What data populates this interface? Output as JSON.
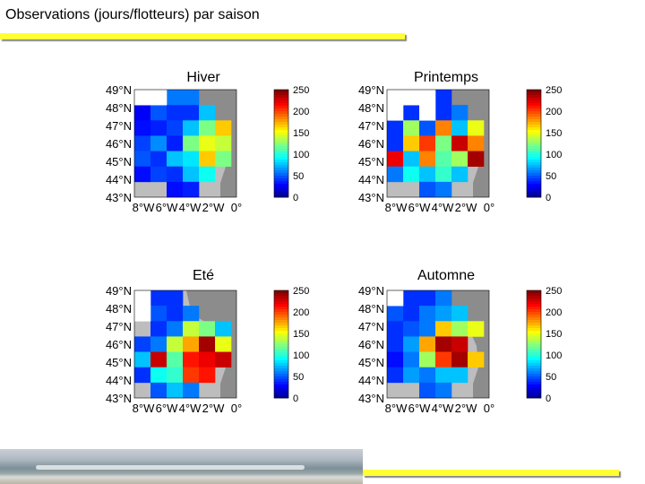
{
  "page": {
    "title": "Observations (jours/flotteurs) par saison",
    "accent_color": "#ffff33"
  },
  "chart_data": [
    {
      "type": "heatmap",
      "title": "Hiver",
      "lon_labels": [
        "8°W",
        "6°W",
        "4°W",
        "2°W",
        "0°"
      ],
      "lat_labels": [
        "49°N",
        "48°N",
        "47°N",
        "46°N",
        "45°N",
        "44°N",
        "43°N"
      ],
      "colorbar_ticks": [
        "250",
        "200",
        "150",
        "100",
        "50",
        "0"
      ],
      "vmin": 0,
      "vmax": 250,
      "grid_rows": 7,
      "grid_cols": 6,
      "values": [
        [
          null,
          null,
          40,
          40,
          null,
          null
        ],
        [
          5,
          30,
          20,
          20,
          60,
          null
        ],
        [
          10,
          15,
          25,
          60,
          110,
          160
        ],
        [
          25,
          45,
          15,
          110,
          140,
          130
        ],
        [
          30,
          20,
          60,
          70,
          160,
          110
        ],
        [
          10,
          25,
          20,
          60,
          80,
          null
        ],
        [
          null,
          null,
          10,
          15,
          null,
          null
        ]
      ]
    },
    {
      "type": "heatmap",
      "title": "Printemps",
      "lon_labels": [
        "8°W",
        "6°W",
        "4°W",
        "2°W",
        "0°"
      ],
      "lat_labels": [
        "49°N",
        "48°N",
        "47°N",
        "46°N",
        "45°N",
        "44°N",
        "43°N"
      ],
      "colorbar_ticks": [
        "250",
        "200",
        "150",
        "100",
        "50",
        "0"
      ],
      "vmin": 0,
      "vmax": 250,
      "grid_rows": 7,
      "grid_cols": 6,
      "values": [
        [
          null,
          null,
          null,
          20,
          null,
          null
        ],
        [
          null,
          20,
          null,
          20,
          40,
          null
        ],
        [
          20,
          120,
          30,
          180,
          60,
          140
        ],
        [
          20,
          160,
          200,
          110,
          230,
          180
        ],
        [
          220,
          60,
          180,
          100,
          120,
          240
        ],
        [
          40,
          80,
          60,
          90,
          60,
          null
        ],
        [
          null,
          null,
          30,
          40,
          null,
          null
        ]
      ]
    },
    {
      "type": "heatmap",
      "title": "Eté",
      "lon_labels": [
        "8°W",
        "6°W",
        "4°W",
        "2°W",
        "0°"
      ],
      "lat_labels": [
        "49°N",
        "48°N",
        "47°N",
        "46°N",
        "45°N",
        "44°N",
        "43°N"
      ],
      "colorbar_ticks": [
        "250",
        "200",
        "150",
        "100",
        "50",
        "0"
      ],
      "vmin": 0,
      "vmax": 250,
      "grid_rows": 7,
      "grid_cols": 6,
      "values": [
        [
          null,
          20,
          20,
          null,
          null,
          null
        ],
        [
          null,
          30,
          20,
          40,
          null,
          null
        ],
        [
          null,
          20,
          40,
          130,
          110,
          60
        ],
        [
          25,
          40,
          130,
          170,
          240,
          140
        ],
        [
          60,
          230,
          100,
          210,
          220,
          230
        ],
        [
          20,
          80,
          90,
          200,
          210,
          null
        ],
        [
          null,
          30,
          60,
          40,
          null,
          null
        ]
      ]
    },
    {
      "type": "heatmap",
      "title": "Automne",
      "lon_labels": [
        "8°W",
        "6°W",
        "4°W",
        "2°W",
        "0°"
      ],
      "lat_labels": [
        "49°N",
        "48°N",
        "47°N",
        "46°N",
        "45°N",
        "44°N",
        "43°N"
      ],
      "colorbar_ticks": [
        "250",
        "200",
        "150",
        "100",
        "50",
        "0"
      ],
      "vmin": 0,
      "vmax": 250,
      "grid_rows": 7,
      "grid_cols": 6,
      "values": [
        [
          null,
          20,
          20,
          40,
          null,
          null
        ],
        [
          30,
          20,
          40,
          50,
          60,
          null
        ],
        [
          20,
          30,
          40,
          160,
          120,
          140
        ],
        [
          20,
          50,
          170,
          240,
          230,
          null
        ],
        [
          10,
          40,
          120,
          200,
          240,
          160
        ],
        [
          20,
          50,
          40,
          60,
          60,
          null
        ],
        [
          null,
          null,
          30,
          40,
          null,
          null
        ]
      ]
    }
  ]
}
